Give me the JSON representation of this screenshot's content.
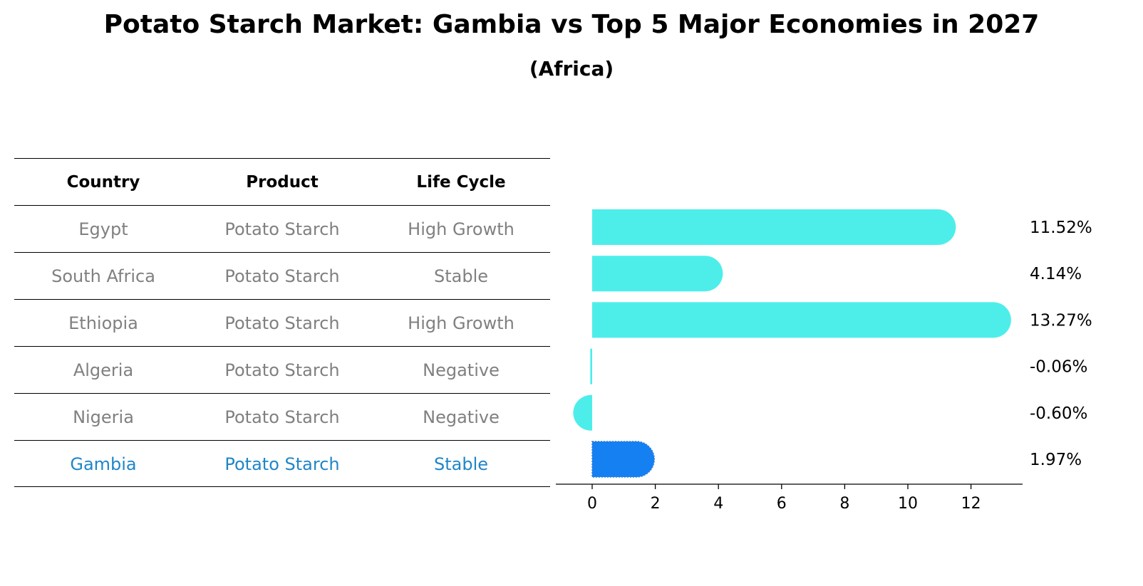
{
  "title": "Potato Starch Market: Gambia vs Top 5 Major Economies in 2027",
  "subtitle": "(Africa)",
  "table": {
    "headers": [
      "Country",
      "Product",
      "Life Cycle"
    ],
    "rows": [
      {
        "country": "Egypt",
        "product": "Potato Starch",
        "life_cycle": "High Growth"
      },
      {
        "country": "South Africa",
        "product": "Potato Starch",
        "life_cycle": "Stable"
      },
      {
        "country": "Ethiopia",
        "product": "Potato Starch",
        "life_cycle": "High Growth"
      },
      {
        "country": "Algeria",
        "product": "Potato Starch",
        "life_cycle": "Negative"
      },
      {
        "country": "Nigeria",
        "product": "Potato Starch",
        "life_cycle": "Negative"
      },
      {
        "country": "Gambia",
        "product": "Potato Starch",
        "life_cycle": "Stable"
      }
    ],
    "highlight_row": 5,
    "highlight_color": "#1f86c8"
  },
  "chart_data": {
    "type": "bar",
    "orientation": "horizontal",
    "categories": [
      "Egypt",
      "South Africa",
      "Ethiopia",
      "Algeria",
      "Nigeria",
      "Gambia"
    ],
    "values": [
      11.52,
      4.14,
      13.27,
      -0.06,
      -0.6,
      1.97
    ],
    "value_labels": [
      "11.52%",
      "4.14%",
      "13.27%",
      "-0.06%",
      "-0.60%",
      "1.97%"
    ],
    "xticks": [
      0,
      2,
      4,
      6,
      8,
      10,
      12
    ],
    "xlim": [
      -1.3,
      14
    ],
    "grid": false,
    "colors": {
      "default": "#4deeea",
      "highlight": "#1580f2"
    },
    "highlight_index": 5
  }
}
